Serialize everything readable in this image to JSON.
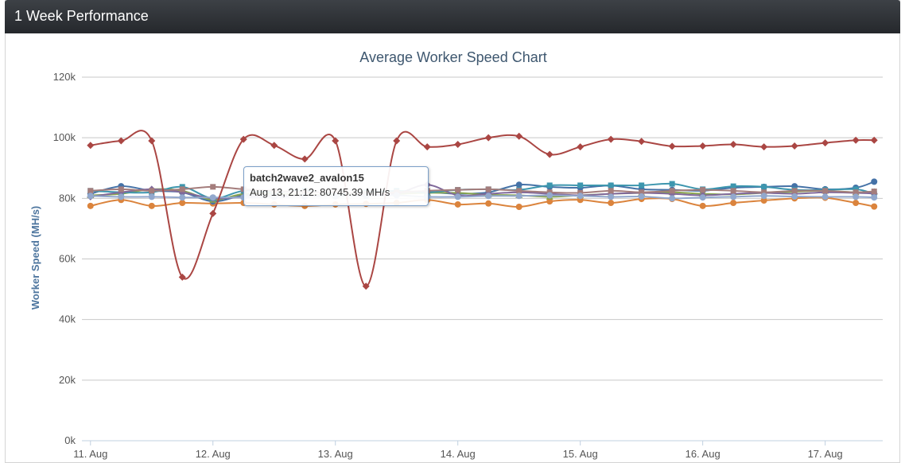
{
  "panel": {
    "title": "1 Week Performance"
  },
  "chart_data": {
    "type": "line",
    "title": "Average Worker Speed Chart",
    "xlabel": "",
    "ylabel": "Worker Speed (MH/s)",
    "ylim": [
      0,
      120000
    ],
    "yticks": [
      "0k",
      "20k",
      "40k",
      "60k",
      "80k",
      "100k",
      "120k"
    ],
    "yticks_values": [
      0,
      20000,
      40000,
      60000,
      80000,
      100000,
      120000
    ],
    "xticks": [
      "11. Aug",
      "12. Aug",
      "13. Aug",
      "14. Aug",
      "15. Aug",
      "16. Aug",
      "17. Aug"
    ],
    "x_domain_days": [
      10.93,
      17.47
    ],
    "grid": "horizontal",
    "legend": "none",
    "x_days": [
      11.0,
      11.25,
      11.5,
      11.75,
      12.0,
      12.25,
      12.5,
      12.75,
      13.0,
      13.25,
      13.5,
      13.75,
      14.0,
      14.25,
      14.5,
      14.75,
      15.0,
      15.25,
      15.5,
      15.75,
      16.0,
      16.25,
      16.5,
      16.75,
      17.0,
      17.25,
      17.4
    ],
    "series": [
      {
        "color": "#aa4643",
        "marker": "diamond",
        "values": [
          97500,
          99000,
          99000,
          54000,
          75000,
          99500,
          97500,
          93000,
          99000,
          51000,
          99000,
          97000,
          97800,
          100000,
          100500,
          94500,
          97000,
          99500,
          98800,
          97200,
          97300,
          97800,
          97000,
          97300,
          98300,
          99200,
          99200
        ]
      },
      {
        "color": "#db843d",
        "marker": "circle",
        "values": [
          77500,
          79500,
          77500,
          78500,
          78300,
          78500,
          78000,
          77500,
          78000,
          78200,
          78500,
          79500,
          78000,
          78300,
          77200,
          79000,
          79500,
          78500,
          79800,
          79800,
          77500,
          78500,
          79300,
          80000,
          80200,
          78500,
          77300
        ]
      },
      {
        "color": "#4572a7",
        "marker": "circle",
        "values": [
          81500,
          84000,
          82500,
          82000,
          79000,
          81000,
          81500,
          81000,
          80700,
          81000,
          81500,
          82000,
          81500,
          82000,
          84500,
          83800,
          83500,
          84200,
          83000,
          82800,
          82500,
          83500,
          83800,
          84000,
          83000,
          83500,
          85500
        ]
      },
      {
        "color": "#89a54e",
        "marker": "triangle",
        "values": [
          81000,
          81500,
          83000,
          82500,
          79500,
          81500,
          81500,
          81300,
          81000,
          81500,
          81500,
          81800,
          81800,
          81200,
          81000,
          80500,
          81000,
          81500,
          81800,
          82000,
          81500,
          81300,
          81800,
          82200,
          82500,
          82000,
          82200
        ]
      },
      {
        "color": "#3d96ae",
        "marker": "square",
        "values": [
          82500,
          82000,
          82000,
          83800,
          80000,
          82500,
          82000,
          82500,
          81500,
          82000,
          82500,
          82000,
          82800,
          83000,
          82800,
          84300,
          84300,
          84300,
          84300,
          84800,
          83000,
          84000,
          83800,
          82800,
          82800,
          83000,
          81500
        ]
      },
      {
        "color": "#80699b",
        "marker": "diamond",
        "values": [
          80500,
          82000,
          83000,
          82000,
          80000,
          80500,
          80800,
          81000,
          80700,
          81200,
          81500,
          84500,
          81000,
          81500,
          82000,
          81500,
          81000,
          81500,
          81800,
          81500,
          81000,
          81500,
          81800,
          81500,
          82000,
          81800,
          81600
        ]
      },
      {
        "color": "#a47d7c",
        "marker": "square",
        "values": [
          82500,
          83000,
          82500,
          83000,
          83800,
          83000,
          82500,
          82000,
          82000,
          81500,
          82000,
          82500,
          82800,
          83000,
          82500,
          82000,
          81800,
          82500,
          82000,
          82500,
          82800,
          82500,
          82000,
          82500,
          82500,
          82000,
          82300
        ]
      },
      {
        "color": "#92a8cd",
        "marker": "circle",
        "values": [
          80800,
          80500,
          80500,
          80300,
          80300,
          80300,
          80500,
          80600,
          80745,
          80800,
          81000,
          80500,
          80500,
          80800,
          80800,
          81000,
          80800,
          80500,
          80600,
          80000,
          80300,
          80500,
          80800,
          80600,
          80500,
          80500,
          80300
        ]
      }
    ]
  },
  "tooltip": {
    "series_name": "batch2wave2_avalon15",
    "text": "Aug 13, 21:12: 80745.39 MH/s"
  }
}
